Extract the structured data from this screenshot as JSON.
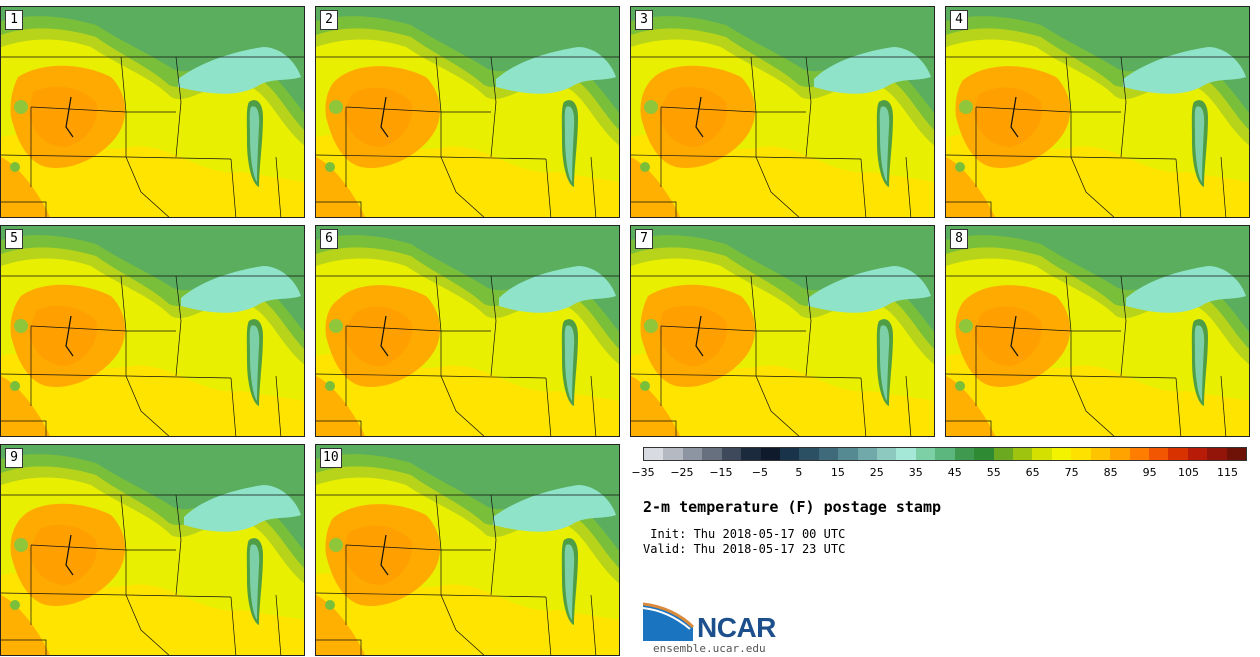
{
  "panels": [
    {
      "label": "1"
    },
    {
      "label": "2"
    },
    {
      "label": "3"
    },
    {
      "label": "4"
    },
    {
      "label": "5"
    },
    {
      "label": "6"
    },
    {
      "label": "7"
    },
    {
      "label": "8"
    },
    {
      "label": "9"
    },
    {
      "label": "10"
    }
  ],
  "colorbar": {
    "colors": [
      "#d8dce2",
      "#b4b9c2",
      "#8d95a3",
      "#67707f",
      "#3e4a5c",
      "#1b2a3d",
      "#0f1b2c",
      "#18334a",
      "#2b4f63",
      "#3e6a7a",
      "#568a93",
      "#71a9aa",
      "#8ec9c0",
      "#a6e8d8",
      "#7dcfa6",
      "#5cb77f",
      "#3f9a4f",
      "#2f8a34",
      "#6aa920",
      "#9ec40f",
      "#d3e000",
      "#f3f300",
      "#ffe100",
      "#ffc400",
      "#ffa300",
      "#ff7d00",
      "#f25600",
      "#d83200",
      "#b81c08",
      "#931408",
      "#6e1208"
    ],
    "tick_labels": [
      "−35",
      "−25",
      "−15",
      "−5",
      "5",
      "15",
      "25",
      "35",
      "45",
      "55",
      "65",
      "75",
      "85",
      "95",
      "105",
      "115"
    ]
  },
  "title": "2-m temperature (F) postage stamp",
  "init_line": " Init: Thu 2018-05-17 00 UTC",
  "valid_line": "Valid: Thu 2018-05-17 23 UTC",
  "logo": {
    "name": "NCAR",
    "url": "ensemble.ucar.edu"
  },
  "colors": {
    "lake": "#8fe3c8",
    "north": "#5aae5e",
    "heat": "#ffaa00",
    "plain": "#e6ee00"
  }
}
